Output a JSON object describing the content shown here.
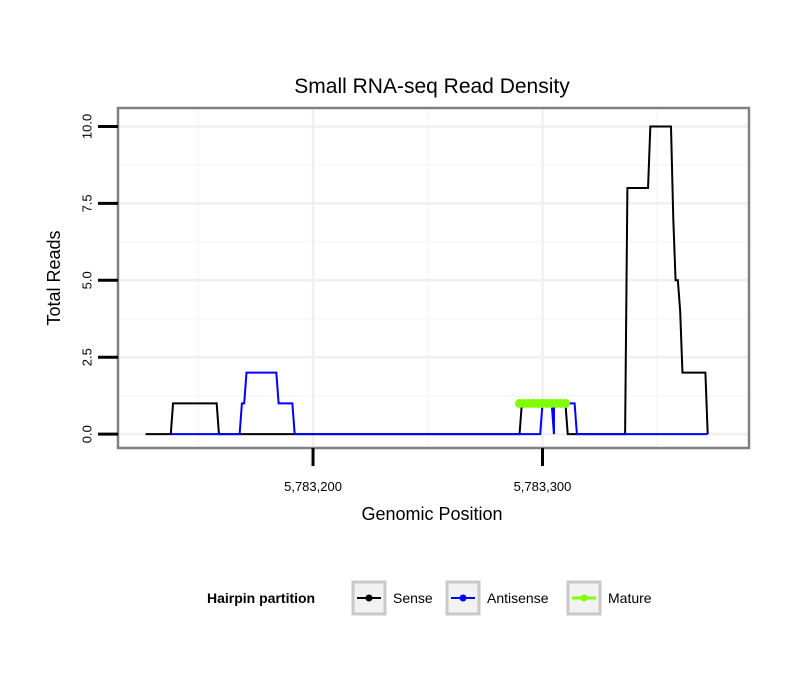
{
  "chart_data": {
    "type": "line",
    "title": "Small RNA-seq Read Density",
    "xlabel": "Genomic Position",
    "ylabel": "Total Reads",
    "xlim": [
      5783115,
      5783390
    ],
    "ylim": [
      -0.45,
      10.6
    ],
    "x_ticks": [
      {
        "value": 5783200,
        "label": "5,783,200"
      },
      {
        "value": 5783300,
        "label": "5,783,300"
      }
    ],
    "y_ticks": [
      {
        "value": 0,
        "label": "0.0"
      },
      {
        "value": 2.5,
        "label": "2.5"
      },
      {
        "value": 5,
        "label": "5.0"
      },
      {
        "value": 7.5,
        "label": "7.5"
      },
      {
        "value": 10,
        "label": "10.0"
      }
    ],
    "grid": true,
    "legend_position": "bottom",
    "legend_title": "Hairpin partition",
    "series": [
      {
        "name": "Sense",
        "color": "#000000",
        "points": [
          [
            5783127,
            0
          ],
          [
            5783138,
            0
          ],
          [
            5783139,
            1
          ],
          [
            5783158,
            1
          ],
          [
            5783159,
            0
          ],
          [
            5783290,
            0
          ],
          [
            5783291,
            1
          ],
          [
            5783310,
            1
          ],
          [
            5783311,
            0
          ],
          [
            5783336,
            0
          ],
          [
            5783337,
            8
          ],
          [
            5783346,
            8
          ],
          [
            5783347,
            10
          ],
          [
            5783356,
            10
          ],
          [
            5783357,
            7
          ],
          [
            5783358,
            5
          ],
          [
            5783359,
            5
          ],
          [
            5783360,
            4
          ],
          [
            5783361,
            2
          ],
          [
            5783371,
            2
          ],
          [
            5783372,
            0
          ]
        ]
      },
      {
        "name": "Antisense",
        "color": "#0000ff",
        "points": [
          [
            5783138,
            0
          ],
          [
            5783168,
            0
          ],
          [
            5783169,
            1
          ],
          [
            5783170,
            1
          ],
          [
            5783171,
            2
          ],
          [
            5783184,
            2
          ],
          [
            5783185,
            1
          ],
          [
            5783191,
            1
          ],
          [
            5783192,
            0
          ],
          [
            5783299,
            0
          ],
          [
            5783300,
            1
          ],
          [
            5783304,
            1
          ],
          [
            5783305,
            0
          ],
          [
            5783305,
            1
          ],
          [
            5783314,
            1
          ],
          [
            5783315,
            0
          ],
          [
            5783372,
            0
          ]
        ]
      },
      {
        "name": "Mature",
        "color": "#80ff00",
        "points": [
          [
            5783290,
            1
          ],
          [
            5783292,
            1
          ],
          [
            5783294,
            1
          ],
          [
            5783296,
            1
          ],
          [
            5783298,
            1
          ],
          [
            5783300,
            1
          ],
          [
            5783302,
            1
          ],
          [
            5783304,
            1
          ],
          [
            5783306,
            1
          ],
          [
            5783308,
            1
          ],
          [
            5783310,
            1
          ]
        ]
      }
    ]
  }
}
